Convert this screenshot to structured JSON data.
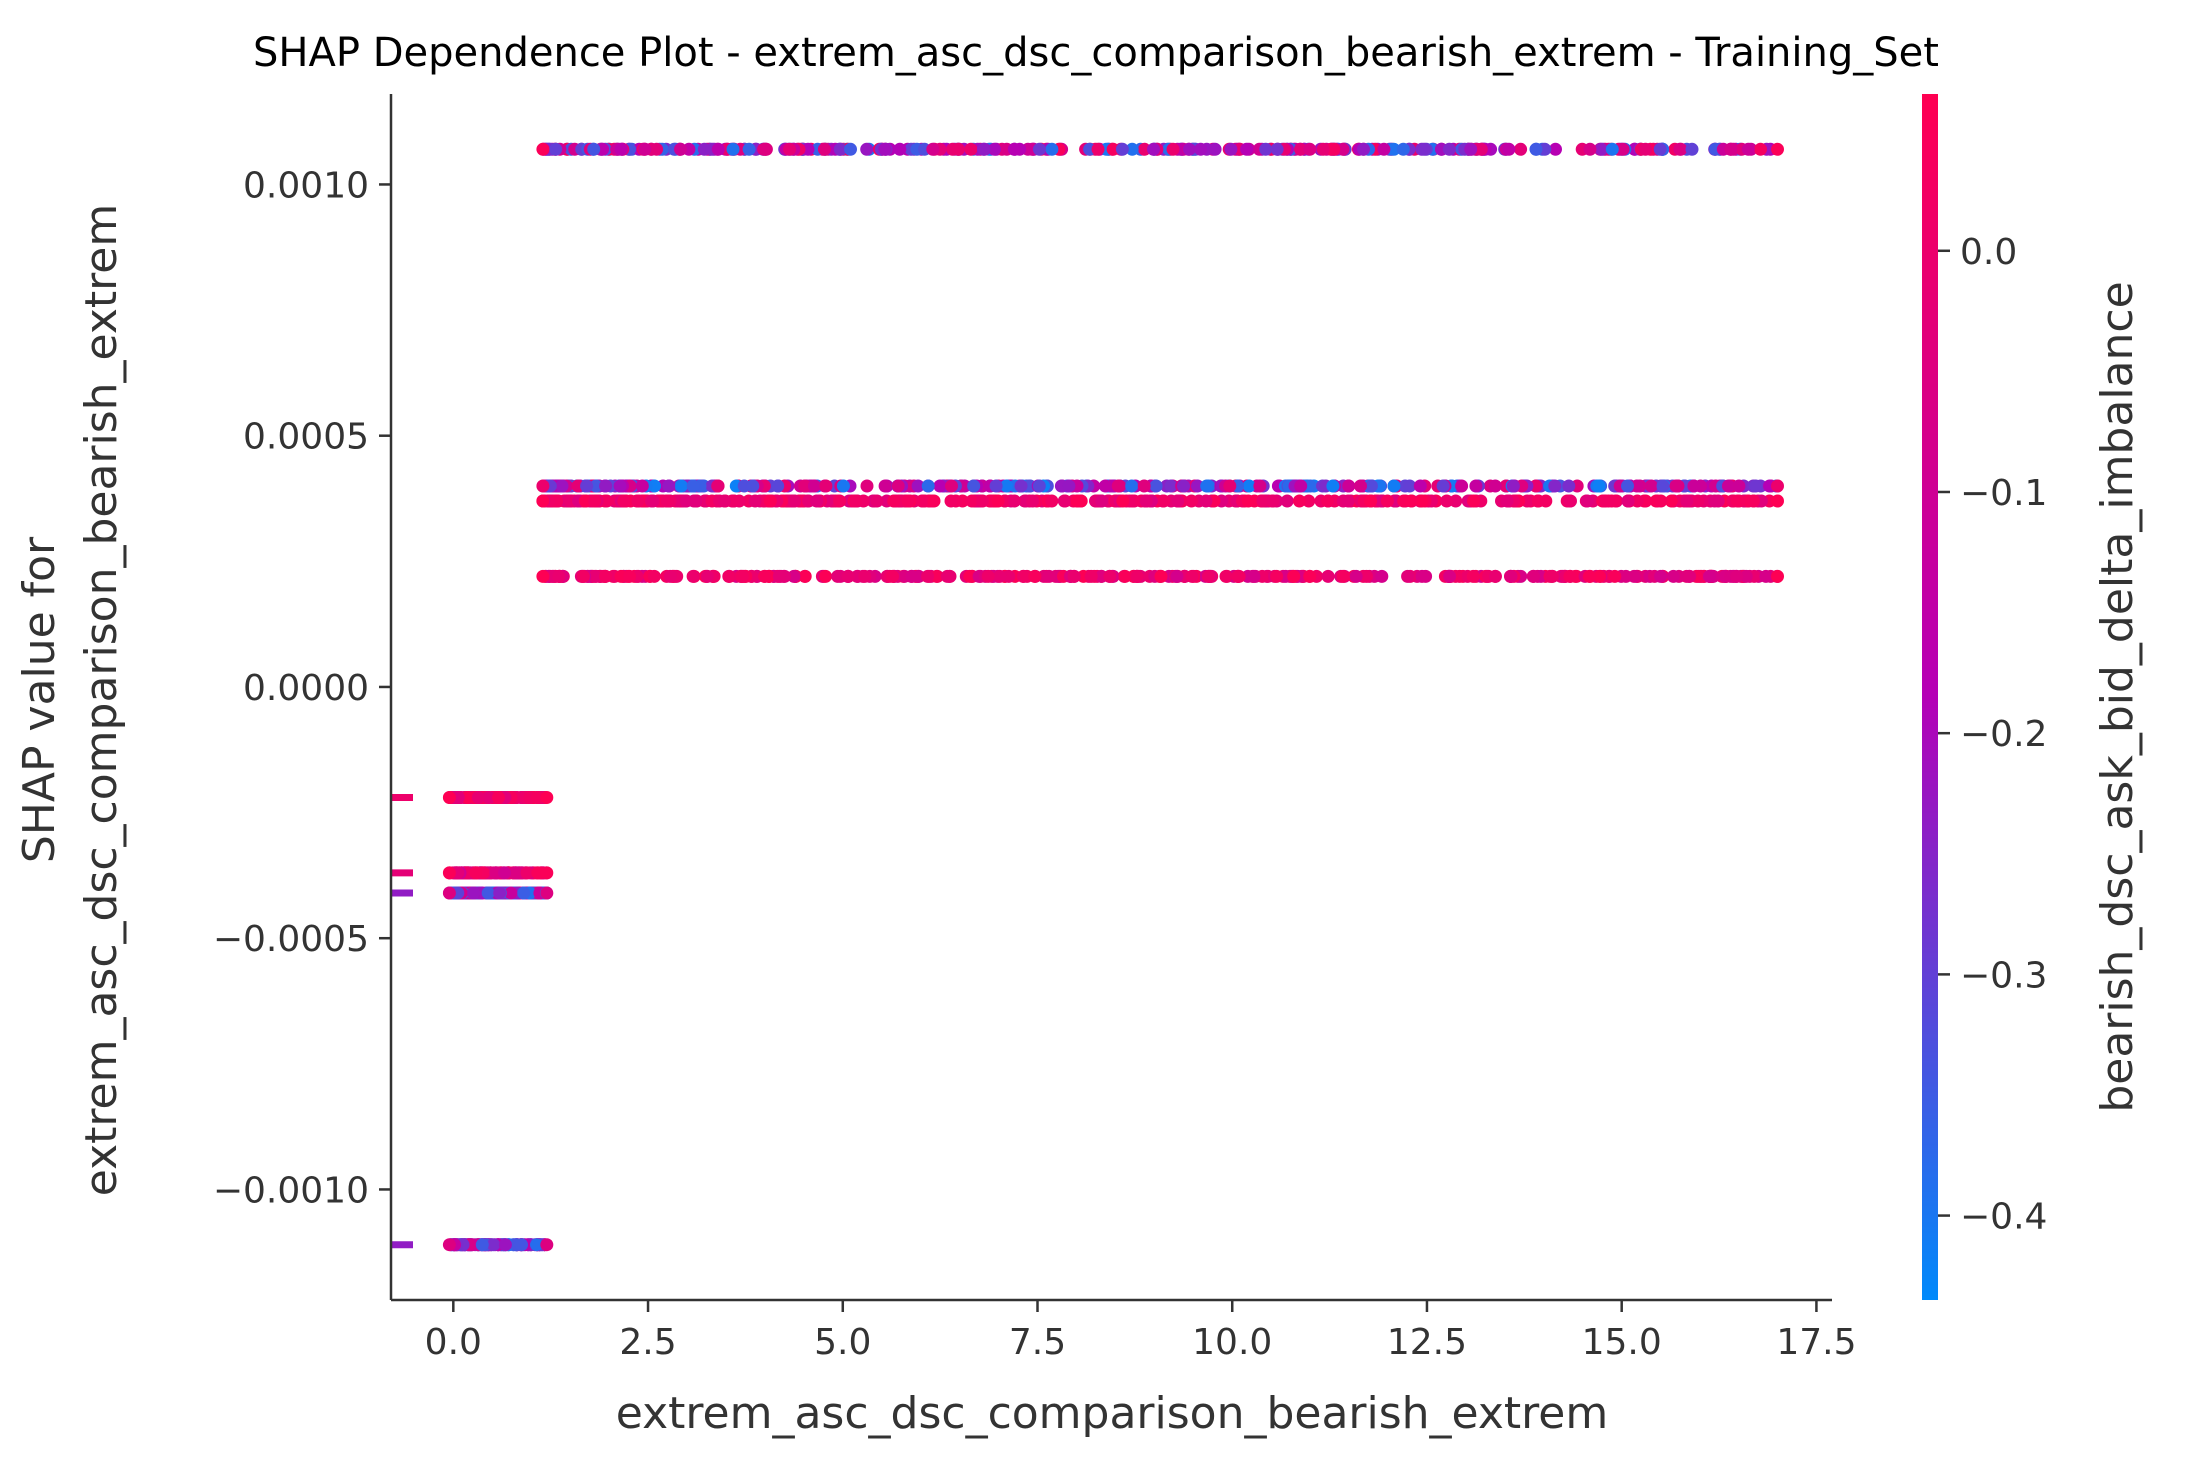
{
  "chart_data": {
    "type": "scatter",
    "title": "SHAP Dependence Plot - extrem_asc_dsc_comparison_bearish_extrem - Training_Set",
    "xlabel": "extrem_asc_dsc_comparison_bearish_extrem",
    "ylabel_line1": "SHAP value for",
    "ylabel_line2": "extrem_asc_dsc_comparison_bearish_extrem",
    "xlim": [
      -0.8,
      17.7
    ],
    "ylim": [
      -0.00122,
      0.00118
    ],
    "x_ticks": [
      "0.0",
      "2.5",
      "5.0",
      "7.5",
      "10.0",
      "12.5",
      "15.0",
      "17.5"
    ],
    "y_ticks": [
      "0.0010",
      "0.0005",
      "0.0000",
      "−0.0005",
      "−0.0010"
    ],
    "colorbar": {
      "label": "bearish_dsc_ask_bid_delta_imbalance",
      "range": [
        -0.435,
        0.065
      ],
      "ticks": [
        "0.0",
        "−0.1",
        "−0.2",
        "−0.3",
        "−0.4"
      ],
      "color_low": "#008afb",
      "color_mid": "#b500b6",
      "color_high": "#ff0052"
    },
    "series": [
      {
        "y": 0.00107,
        "x_range": [
          1.15,
          17.0
        ],
        "color_range": [
          -0.4,
          0.05
        ]
      },
      {
        "y": 0.0004,
        "x_range": [
          1.15,
          17.0
        ],
        "color_range": [
          -0.42,
          0.0
        ]
      },
      {
        "y": 0.00037,
        "x_range": [
          1.15,
          17.0
        ],
        "color_range": [
          -0.05,
          0.06
        ]
      },
      {
        "y": 0.00022,
        "x_range": [
          1.15,
          17.0
        ],
        "color_range": [
          -0.08,
          0.06
        ]
      },
      {
        "y": -0.00022,
        "x_range": [
          -0.05,
          1.2
        ],
        "color_range": [
          -0.05,
          0.06
        ]
      },
      {
        "y": -0.00037,
        "x_range": [
          -0.05,
          1.2
        ],
        "color_range": [
          -0.1,
          0.05
        ]
      },
      {
        "y": -0.00041,
        "x_range": [
          -0.05,
          1.2
        ],
        "color_range": [
          -0.42,
          -0.05
        ]
      },
      {
        "y": -0.00111,
        "x_range": [
          -0.05,
          1.2
        ],
        "color_range": [
          -0.42,
          -0.05
        ]
      }
    ]
  }
}
